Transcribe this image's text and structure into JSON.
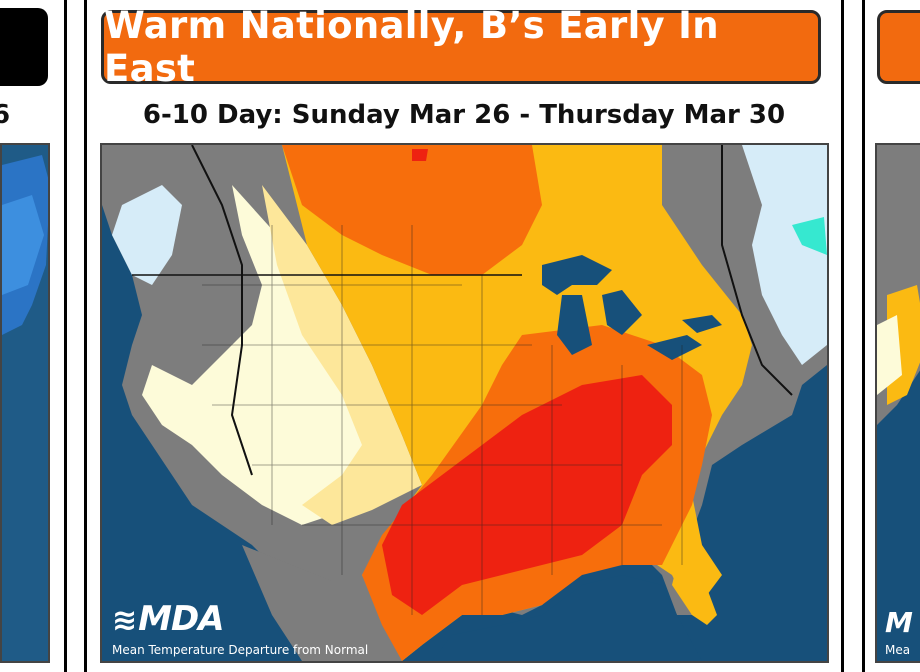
{
  "panels": {
    "left": {
      "date_fragment": "6"
    },
    "center": {
      "headline": "Warm Nationally, B’s Early In East",
      "date_range": "6-10 Day: Sunday Mar 26 - Thursday Mar 30",
      "logo_text": "MDA",
      "caption": "Mean Temperature Departure from Normal"
    },
    "right": {
      "logo_fragment": "M",
      "caption_fragment": "Mea"
    }
  },
  "colors": {
    "banner": "#f26a0f",
    "water": "#17507a",
    "much_above": "#ee2211",
    "above": "#f76e0c",
    "slightly_above": "#fbba12",
    "near_above": "#fde79a",
    "near_normal": "#fdfbd9",
    "below": "#7d7d7d",
    "slightly_below": "#d6ecf8",
    "cool": "#36e8d0"
  }
}
